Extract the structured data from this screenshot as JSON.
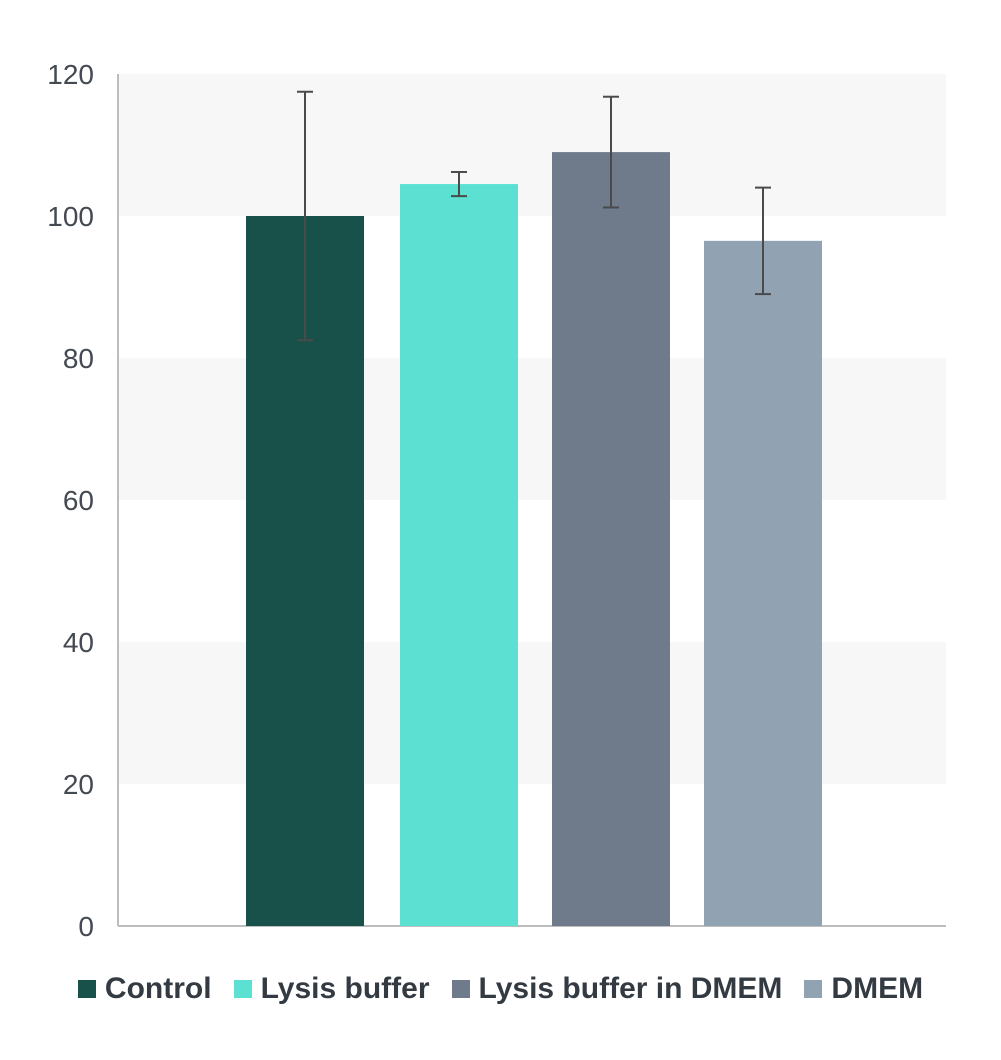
{
  "chart_data": {
    "type": "bar",
    "title": "",
    "xlabel": "",
    "ylabel": "",
    "ylim": [
      0,
      120
    ],
    "yticks": [
      0,
      20,
      40,
      60,
      80,
      100,
      120
    ],
    "grid": "alternating horizontal bands",
    "legend_position": "bottom",
    "categories": [
      "Control",
      "Lysis buffer",
      "Lysis buffer in DMEM",
      "DMEM"
    ],
    "values": [
      100,
      104.5,
      109,
      96.5
    ],
    "error": [
      17.5,
      1.7,
      7.8,
      7.5
    ],
    "colors": [
      "#17514a",
      "#5ce0d2",
      "#6f7b8b",
      "#91a2b2"
    ]
  }
}
